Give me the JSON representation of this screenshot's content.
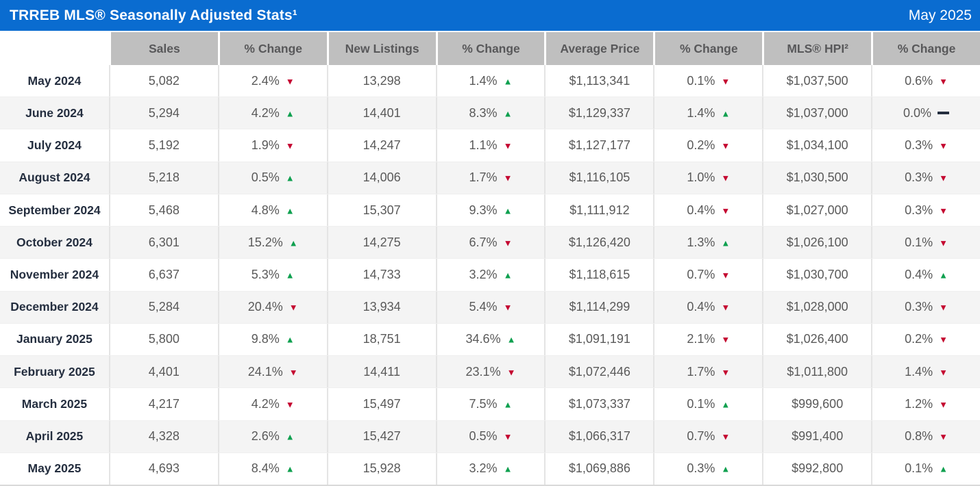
{
  "header": {
    "title": "TRREB MLS® Seasonally Adjusted Stats¹",
    "period": "May 2025"
  },
  "colors": {
    "titlebar_blue": "#0A6CD0",
    "header_gray": "#BFBFBF",
    "header_text_gray": "#58585A",
    "stripe_gray": "#F4F4F4",
    "value_text_gray": "#595959",
    "month_navy": "#242E3F",
    "up_green": "#0FA04F",
    "down_red": "#C40730"
  },
  "chart_data": {
    "type": "table",
    "title": "TRREB MLS® Seasonally Adjusted Stats¹",
    "period_label": "May 2025",
    "columns": [
      "",
      "Sales",
      "% Change",
      "New Listings",
      "% Change",
      "Average Price",
      "% Change",
      "MLS® HPI²",
      "% Change"
    ],
    "rows": [
      {
        "month": "May 2024",
        "cells": [
          {
            "t": "5,082"
          },
          {
            "t": "2.4%",
            "dir": "down"
          },
          {
            "t": "13,298"
          },
          {
            "t": "1.4%",
            "dir": "up"
          },
          {
            "t": "$1,113,341"
          },
          {
            "t": "0.1%",
            "dir": "down"
          },
          {
            "t": "$1,037,500"
          },
          {
            "t": "0.6%",
            "dir": "down"
          }
        ]
      },
      {
        "month": "June 2024",
        "cells": [
          {
            "t": "5,294"
          },
          {
            "t": "4.2%",
            "dir": "up"
          },
          {
            "t": "14,401"
          },
          {
            "t": "8.3%",
            "dir": "up"
          },
          {
            "t": "$1,129,337"
          },
          {
            "t": "1.4%",
            "dir": "up"
          },
          {
            "t": "$1,037,000"
          },
          {
            "t": "0.0%",
            "dir": "flat"
          }
        ]
      },
      {
        "month": "July 2024",
        "cells": [
          {
            "t": "5,192"
          },
          {
            "t": "1.9%",
            "dir": "down"
          },
          {
            "t": "14,247"
          },
          {
            "t": "1.1%",
            "dir": "down"
          },
          {
            "t": "$1,127,177"
          },
          {
            "t": "0.2%",
            "dir": "down"
          },
          {
            "t": "$1,034,100"
          },
          {
            "t": "0.3%",
            "dir": "down"
          }
        ]
      },
      {
        "month": "August 2024",
        "cells": [
          {
            "t": "5,218"
          },
          {
            "t": "0.5%",
            "dir": "up"
          },
          {
            "t": "14,006"
          },
          {
            "t": "1.7%",
            "dir": "down"
          },
          {
            "t": "$1,116,105"
          },
          {
            "t": "1.0%",
            "dir": "down"
          },
          {
            "t": "$1,030,500"
          },
          {
            "t": "0.3%",
            "dir": "down"
          }
        ]
      },
      {
        "month": "September 2024",
        "cells": [
          {
            "t": "5,468"
          },
          {
            "t": "4.8%",
            "dir": "up"
          },
          {
            "t": "15,307"
          },
          {
            "t": "9.3%",
            "dir": "up"
          },
          {
            "t": "$1,111,912"
          },
          {
            "t": "0.4%",
            "dir": "down"
          },
          {
            "t": "$1,027,000"
          },
          {
            "t": "0.3%",
            "dir": "down"
          }
        ]
      },
      {
        "month": "October 2024",
        "cells": [
          {
            "t": "6,301"
          },
          {
            "t": "15.2%",
            "dir": "up"
          },
          {
            "t": "14,275"
          },
          {
            "t": "6.7%",
            "dir": "down"
          },
          {
            "t": "$1,126,420"
          },
          {
            "t": "1.3%",
            "dir": "up"
          },
          {
            "t": "$1,026,100"
          },
          {
            "t": "0.1%",
            "dir": "down"
          }
        ]
      },
      {
        "month": "November 2024",
        "cells": [
          {
            "t": "6,637"
          },
          {
            "t": "5.3%",
            "dir": "up"
          },
          {
            "t": "14,733"
          },
          {
            "t": "3.2%",
            "dir": "up"
          },
          {
            "t": "$1,118,615"
          },
          {
            "t": "0.7%",
            "dir": "down"
          },
          {
            "t": "$1,030,700"
          },
          {
            "t": "0.4%",
            "dir": "up"
          }
        ]
      },
      {
        "month": "December 2024",
        "cells": [
          {
            "t": "5,284"
          },
          {
            "t": "20.4%",
            "dir": "down"
          },
          {
            "t": "13,934"
          },
          {
            "t": "5.4%",
            "dir": "down"
          },
          {
            "t": "$1,114,299"
          },
          {
            "t": "0.4%",
            "dir": "down"
          },
          {
            "t": "$1,028,000"
          },
          {
            "t": "0.3%",
            "dir": "down"
          }
        ]
      },
      {
        "month": "January 2025",
        "cells": [
          {
            "t": "5,800"
          },
          {
            "t": "9.8%",
            "dir": "up"
          },
          {
            "t": "18,751"
          },
          {
            "t": "34.6%",
            "dir": "up"
          },
          {
            "t": "$1,091,191"
          },
          {
            "t": "2.1%",
            "dir": "down"
          },
          {
            "t": "$1,026,400"
          },
          {
            "t": "0.2%",
            "dir": "down"
          }
        ]
      },
      {
        "month": "February 2025",
        "cells": [
          {
            "t": "4,401"
          },
          {
            "t": "24.1%",
            "dir": "down"
          },
          {
            "t": "14,411"
          },
          {
            "t": "23.1%",
            "dir": "down"
          },
          {
            "t": "$1,072,446"
          },
          {
            "t": "1.7%",
            "dir": "down"
          },
          {
            "t": "$1,011,800"
          },
          {
            "t": "1.4%",
            "dir": "down"
          }
        ]
      },
      {
        "month": "March 2025",
        "cells": [
          {
            "t": "4,217"
          },
          {
            "t": "4.2%",
            "dir": "down"
          },
          {
            "t": "15,497"
          },
          {
            "t": "7.5%",
            "dir": "up"
          },
          {
            "t": "$1,073,337"
          },
          {
            "t": "0.1%",
            "dir": "up"
          },
          {
            "t": "$999,600"
          },
          {
            "t": "1.2%",
            "dir": "down"
          }
        ]
      },
      {
        "month": "April 2025",
        "cells": [
          {
            "t": "4,328"
          },
          {
            "t": "2.6%",
            "dir": "up"
          },
          {
            "t": "15,427"
          },
          {
            "t": "0.5%",
            "dir": "down"
          },
          {
            "t": "$1,066,317"
          },
          {
            "t": "0.7%",
            "dir": "down"
          },
          {
            "t": "$991,400"
          },
          {
            "t": "0.8%",
            "dir": "down"
          }
        ]
      },
      {
        "month": "May 2025",
        "cells": [
          {
            "t": "4,693"
          },
          {
            "t": "8.4%",
            "dir": "up"
          },
          {
            "t": "15,928"
          },
          {
            "t": "3.2%",
            "dir": "up"
          },
          {
            "t": "$1,069,886"
          },
          {
            "t": "0.3%",
            "dir": "up"
          },
          {
            "t": "$992,800"
          },
          {
            "t": "0.1%",
            "dir": "up"
          }
        ]
      }
    ]
  }
}
